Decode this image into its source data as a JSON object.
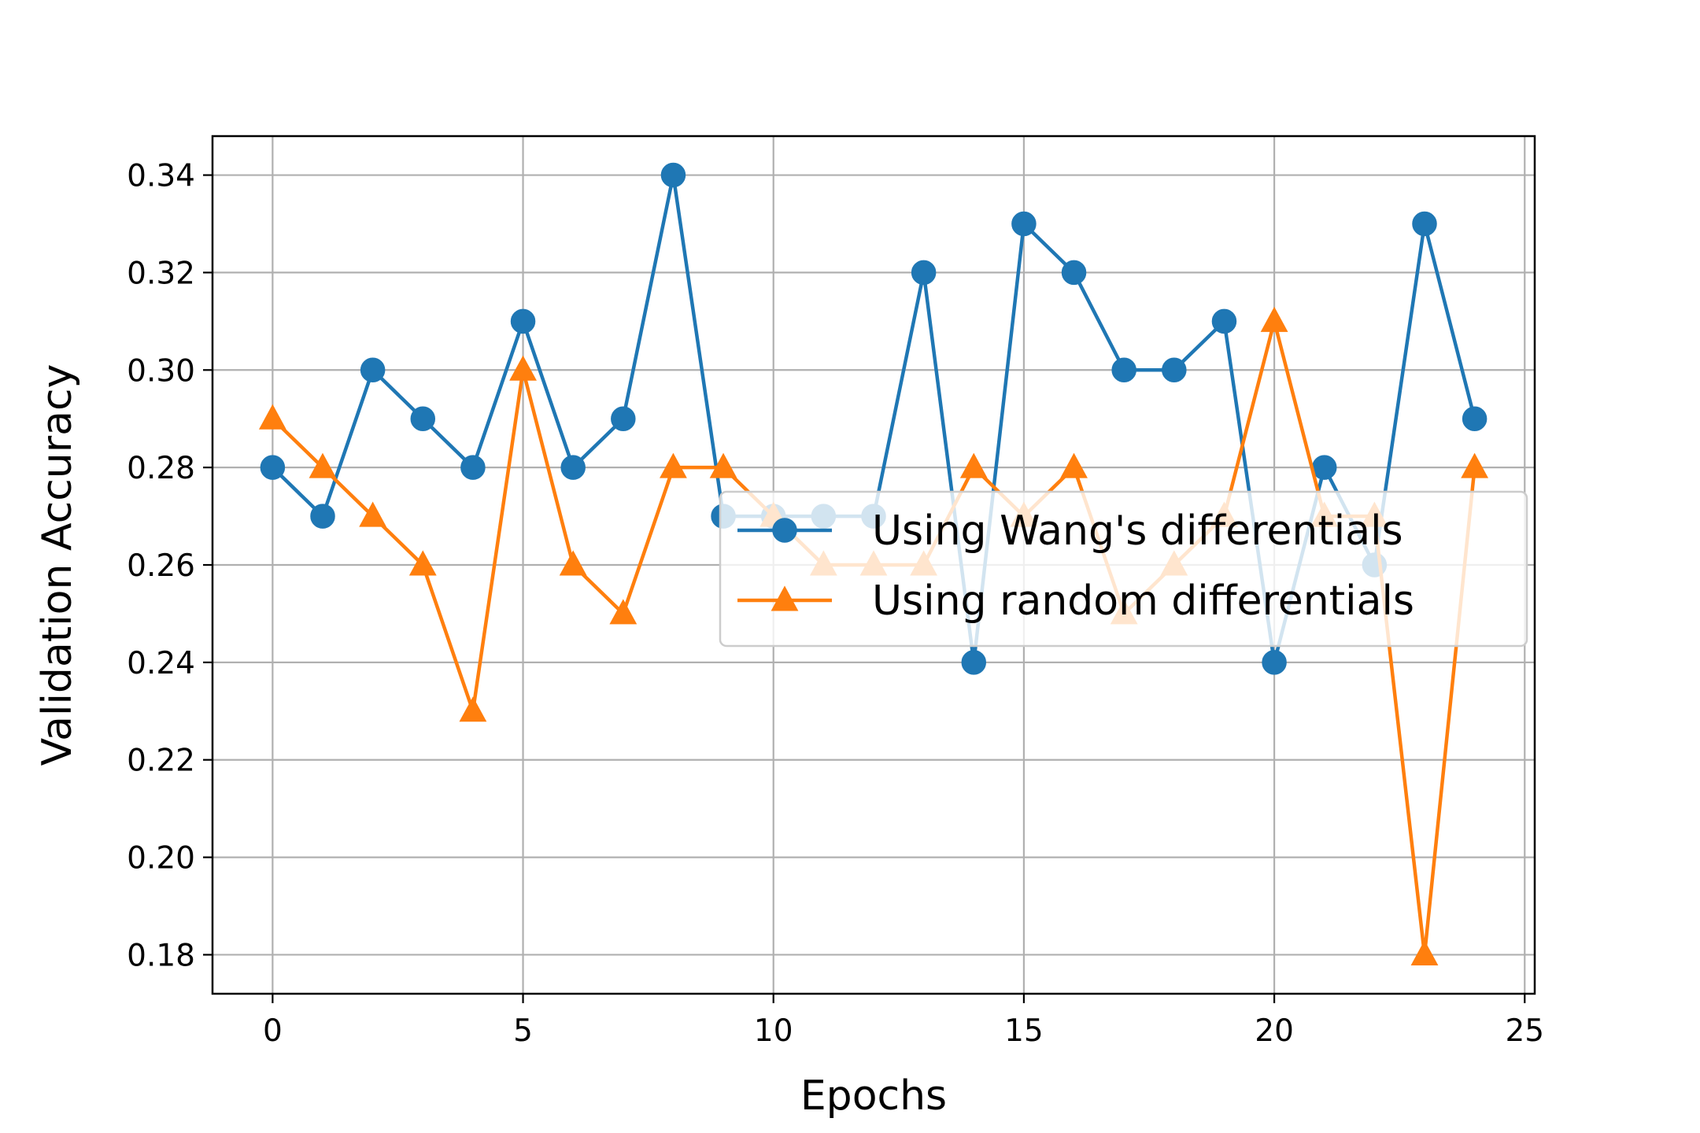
{
  "chart_data": {
    "type": "line",
    "title": "",
    "xlabel": "Epochs",
    "ylabel": "Validation Accuracy",
    "xlim": [
      -1.2,
      25.2
    ],
    "ylim": [
      0.172,
      0.348
    ],
    "xticks": [
      0,
      5,
      10,
      15,
      20,
      25
    ],
    "xtick_labels": [
      "0",
      "5",
      "10",
      "15",
      "20",
      "25"
    ],
    "yticks": [
      0.18,
      0.2,
      0.22,
      0.24,
      0.26,
      0.28,
      0.3,
      0.32,
      0.34
    ],
    "ytick_labels": [
      "0.18",
      "0.20",
      "0.22",
      "0.24",
      "0.26",
      "0.28",
      "0.30",
      "0.32",
      "0.34"
    ],
    "grid": true,
    "legend_position": "center-right",
    "x": [
      0,
      1,
      2,
      3,
      4,
      5,
      6,
      7,
      8,
      9,
      10,
      11,
      12,
      13,
      14,
      15,
      16,
      17,
      18,
      19,
      20,
      21,
      22,
      23,
      24
    ],
    "series": [
      {
        "name": "Using Wang's differentials",
        "color": "#1f77b4",
        "marker": "circle",
        "values": [
          0.28,
          0.27,
          0.3,
          0.29,
          0.28,
          0.31,
          0.28,
          0.29,
          0.34,
          0.27,
          0.27,
          0.27,
          0.27,
          0.32,
          0.24,
          0.33,
          0.32,
          0.3,
          0.3,
          0.31,
          0.24,
          0.28,
          0.26,
          0.33,
          0.29
        ]
      },
      {
        "name": "Using random differentials",
        "color": "#ff7f0e",
        "marker": "triangle",
        "values": [
          0.29,
          0.28,
          0.27,
          0.26,
          0.23,
          0.3,
          0.26,
          0.25,
          0.28,
          0.28,
          0.27,
          0.26,
          0.26,
          0.26,
          0.28,
          0.27,
          0.28,
          0.25,
          0.26,
          0.27,
          0.31,
          0.27,
          0.27,
          0.18,
          0.28
        ]
      }
    ]
  }
}
